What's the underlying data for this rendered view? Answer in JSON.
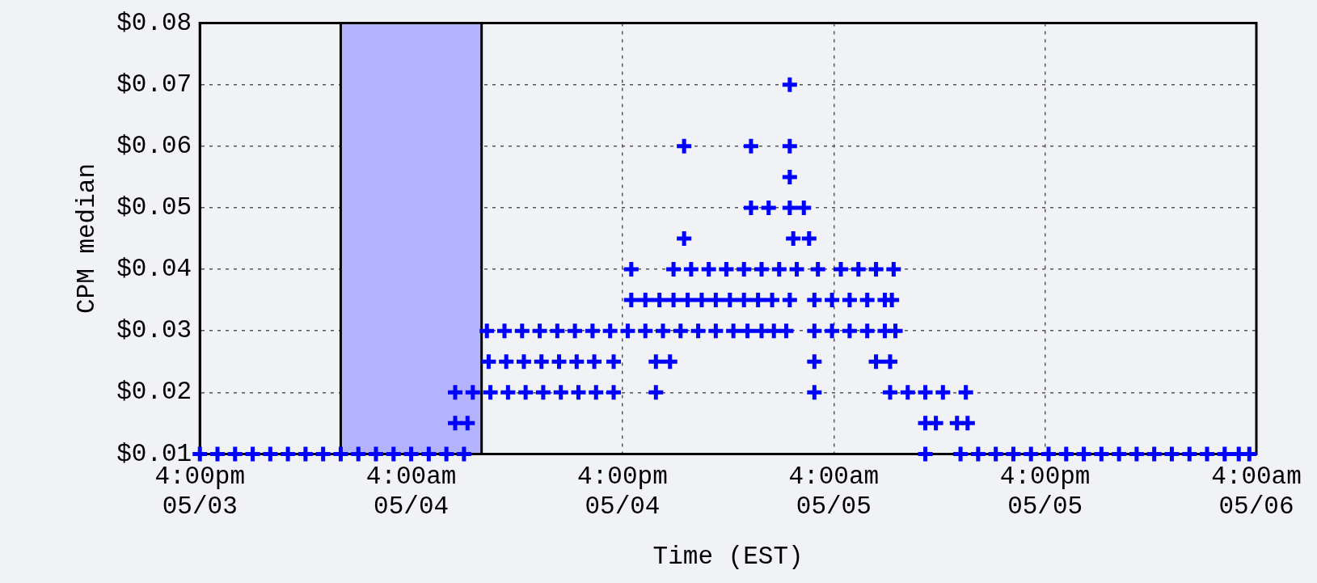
{
  "chart_data": {
    "type": "scatter",
    "xlabel": "Time (EST)",
    "ylabel": "CPM median",
    "x": [
      "--05-03T16:00",
      "--05-03T17:00",
      "--05-03T18:00",
      "--05-03T19:00",
      "--05-03T20:00",
      "--05-03T21:00",
      "--05-03T22:00",
      "--05-03T23:00",
      "--05-04T00:00",
      "--05-04T01:00",
      "--05-04T02:00",
      "--05-04T03:00",
      "--05-04T04:00",
      "--05-04T05:00",
      "--05-04T06:00",
      "--05-04T07:00",
      "--05-05T09:12",
      "--05-05T11:12",
      "--05-05T12:12",
      "--05-05T13:12",
      "--05-05T14:12",
      "--05-05T15:12",
      "--05-05T16:12",
      "--05-05T17:12",
      "--05-05T18:12",
      "--05-05T19:12",
      "--05-05T20:12",
      "--05-05T21:12",
      "--05-05T22:12",
      "--05-05T23:12",
      "--05-06T00:12",
      "--05-06T01:12",
      "--05-06T02:12",
      "--05-06T03:00",
      "--05-06T03:36",
      "--05-04T06:30",
      "--05-04T07:12",
      "--05-05T09:12",
      "--05-05T09:48",
      "--05-05T11:00",
      "--05-05T11:36",
      "--05-04T06:30",
      "--05-04T07:30",
      "--05-04T08:30",
      "--05-04T09:30",
      "--05-04T10:30",
      "--05-04T11:30",
      "--05-04T12:30",
      "--05-04T13:30",
      "--05-04T14:30",
      "--05-04T15:30",
      "--05-04T17:54",
      "--05-05T02:54",
      "--05-05T07:12",
      "--05-05T08:12",
      "--05-05T09:12",
      "--05-05T10:12",
      "--05-05T11:30",
      "--05-04T08:24",
      "--05-04T09:24",
      "--05-04T10:24",
      "--05-04T11:24",
      "--05-04T12:24",
      "--05-04T13:24",
      "--05-04T14:24",
      "--05-04T15:30",
      "--05-04T17:54",
      "--05-04T18:42",
      "--05-05T02:54",
      "--05-05T06:24",
      "--05-05T07:12",
      "--05-04T08:18",
      "--05-04T09:18",
      "--05-04T10:18",
      "--05-04T11:18",
      "--05-04T12:18",
      "--05-04T13:18",
      "--05-04T14:18",
      "--05-04T15:18",
      "--05-04T16:18",
      "--05-04T17:18",
      "--05-04T18:18",
      "--05-04T19:18",
      "--05-04T20:18",
      "--05-04T21:18",
      "--05-04T22:18",
      "--05-04T23:06",
      "--05-04T23:54",
      "--05-05T00:36",
      "--05-05T01:18",
      "--05-05T02:54",
      "--05-05T03:54",
      "--05-05T04:54",
      "--05-05T05:54",
      "--05-05T06:54",
      "--05-05T07:30",
      "--05-04T16:30",
      "--05-04T17:18",
      "--05-04T18:06",
      "--05-04T18:54",
      "--05-04T19:42",
      "--05-04T20:30",
      "--05-04T21:18",
      "--05-04T22:06",
      "--05-04T22:54",
      "--05-04T23:42",
      "--05-05T00:30",
      "--05-05T01:30",
      "--05-05T02:54",
      "--05-05T03:54",
      "--05-05T04:54",
      "--05-05T05:54",
      "--05-05T06:54",
      "--05-05T07:18",
      "--05-04T16:30",
      "--05-04T18:54",
      "--05-04T19:54",
      "--05-04T20:54",
      "--05-04T21:54",
      "--05-04T22:54",
      "--05-04T23:54",
      "--05-05T00:54",
      "--05-05T01:54",
      "--05-05T03:06",
      "--05-05T04:24",
      "--05-05T05:24",
      "--05-05T06:24",
      "--05-05T07:24",
      "--05-04T19:30",
      "--05-05T01:42",
      "--05-05T02:36",
      "--05-04T23:18",
      "--05-05T00:18",
      "--05-05T01:30",
      "--05-05T02:18",
      "--05-05T01:30",
      "--05-04T19:30",
      "--05-04T23:18",
      "--05-05T01:30",
      "--05-05T01:30"
    ],
    "series": [
      {
        "color": "#0000ff",
        "values": [
          0.01,
          0.01,
          0.01,
          0.01,
          0.01,
          0.01,
          0.01,
          0.01,
          0.01,
          0.01,
          0.01,
          0.01,
          0.01,
          0.01,
          0.01,
          0.01,
          0.01,
          0.01,
          0.01,
          0.01,
          0.01,
          0.01,
          0.01,
          0.01,
          0.01,
          0.01,
          0.01,
          0.01,
          0.01,
          0.01,
          0.01,
          0.01,
          0.01,
          0.01,
          0.01,
          0.015,
          0.015,
          0.015,
          0.015,
          0.015,
          0.015,
          0.02,
          0.02,
          0.02,
          0.02,
          0.02,
          0.02,
          0.02,
          0.02,
          0.02,
          0.02,
          0.02,
          0.02,
          0.02,
          0.02,
          0.02,
          0.02,
          0.02,
          0.025,
          0.025,
          0.025,
          0.025,
          0.025,
          0.025,
          0.025,
          0.025,
          0.025,
          0.025,
          0.025,
          0.025,
          0.025,
          0.03,
          0.03,
          0.03,
          0.03,
          0.03,
          0.03,
          0.03,
          0.03,
          0.03,
          0.03,
          0.03,
          0.03,
          0.03,
          0.03,
          0.03,
          0.03,
          0.03,
          0.03,
          0.03,
          0.03,
          0.03,
          0.03,
          0.03,
          0.03,
          0.03,
          0.035,
          0.035,
          0.035,
          0.035,
          0.035,
          0.035,
          0.035,
          0.035,
          0.035,
          0.035,
          0.035,
          0.035,
          0.035,
          0.035,
          0.035,
          0.035,
          0.035,
          0.035,
          0.04,
          0.04,
          0.04,
          0.04,
          0.04,
          0.04,
          0.04,
          0.04,
          0.04,
          0.04,
          0.04,
          0.04,
          0.04,
          0.04,
          0.045,
          0.045,
          0.045,
          0.05,
          0.05,
          0.05,
          0.05,
          0.055,
          0.06,
          0.06,
          0.06,
          0.07
        ]
      }
    ],
    "xlim": [
      "--05-03T16:00",
      "--05-06T04:00"
    ],
    "xticks": [
      {
        "value": "--05-03T16:00",
        "label": "4:00pm 05/03"
      },
      {
        "value": "--05-04T04:00",
        "label": "4:00am 05/04"
      },
      {
        "value": "--05-04T16:00",
        "label": "4:00pm 05/04"
      },
      {
        "value": "--05-05T04:00",
        "label": "4:00am 05/05"
      },
      {
        "value": "--05-05T16:00",
        "label": "4:00pm 05/05"
      },
      {
        "value": "--05-06T04:00",
        "label": "4:00am 05/06"
      }
    ],
    "ylim": [
      0.01,
      0.08
    ],
    "yticks": [
      {
        "value": 0.01,
        "label": "$0.01"
      },
      {
        "value": 0.02,
        "label": "$0.02"
      },
      {
        "value": 0.03,
        "label": "$0.03"
      },
      {
        "value": 0.04,
        "label": "$0.04"
      },
      {
        "value": 0.05,
        "label": "$0.05"
      },
      {
        "value": 0.06,
        "label": "$0.06"
      },
      {
        "value": 0.07,
        "label": "$0.07"
      },
      {
        "value": 0.08,
        "label": "$0.08"
      }
    ],
    "bands": [
      {
        "axis": "x",
        "from": "--05-04T00:00",
        "to": "--05-04T08:00",
        "color": "#b3b3ff"
      }
    ],
    "grid": true,
    "legend": false,
    "marker": "cross"
  }
}
